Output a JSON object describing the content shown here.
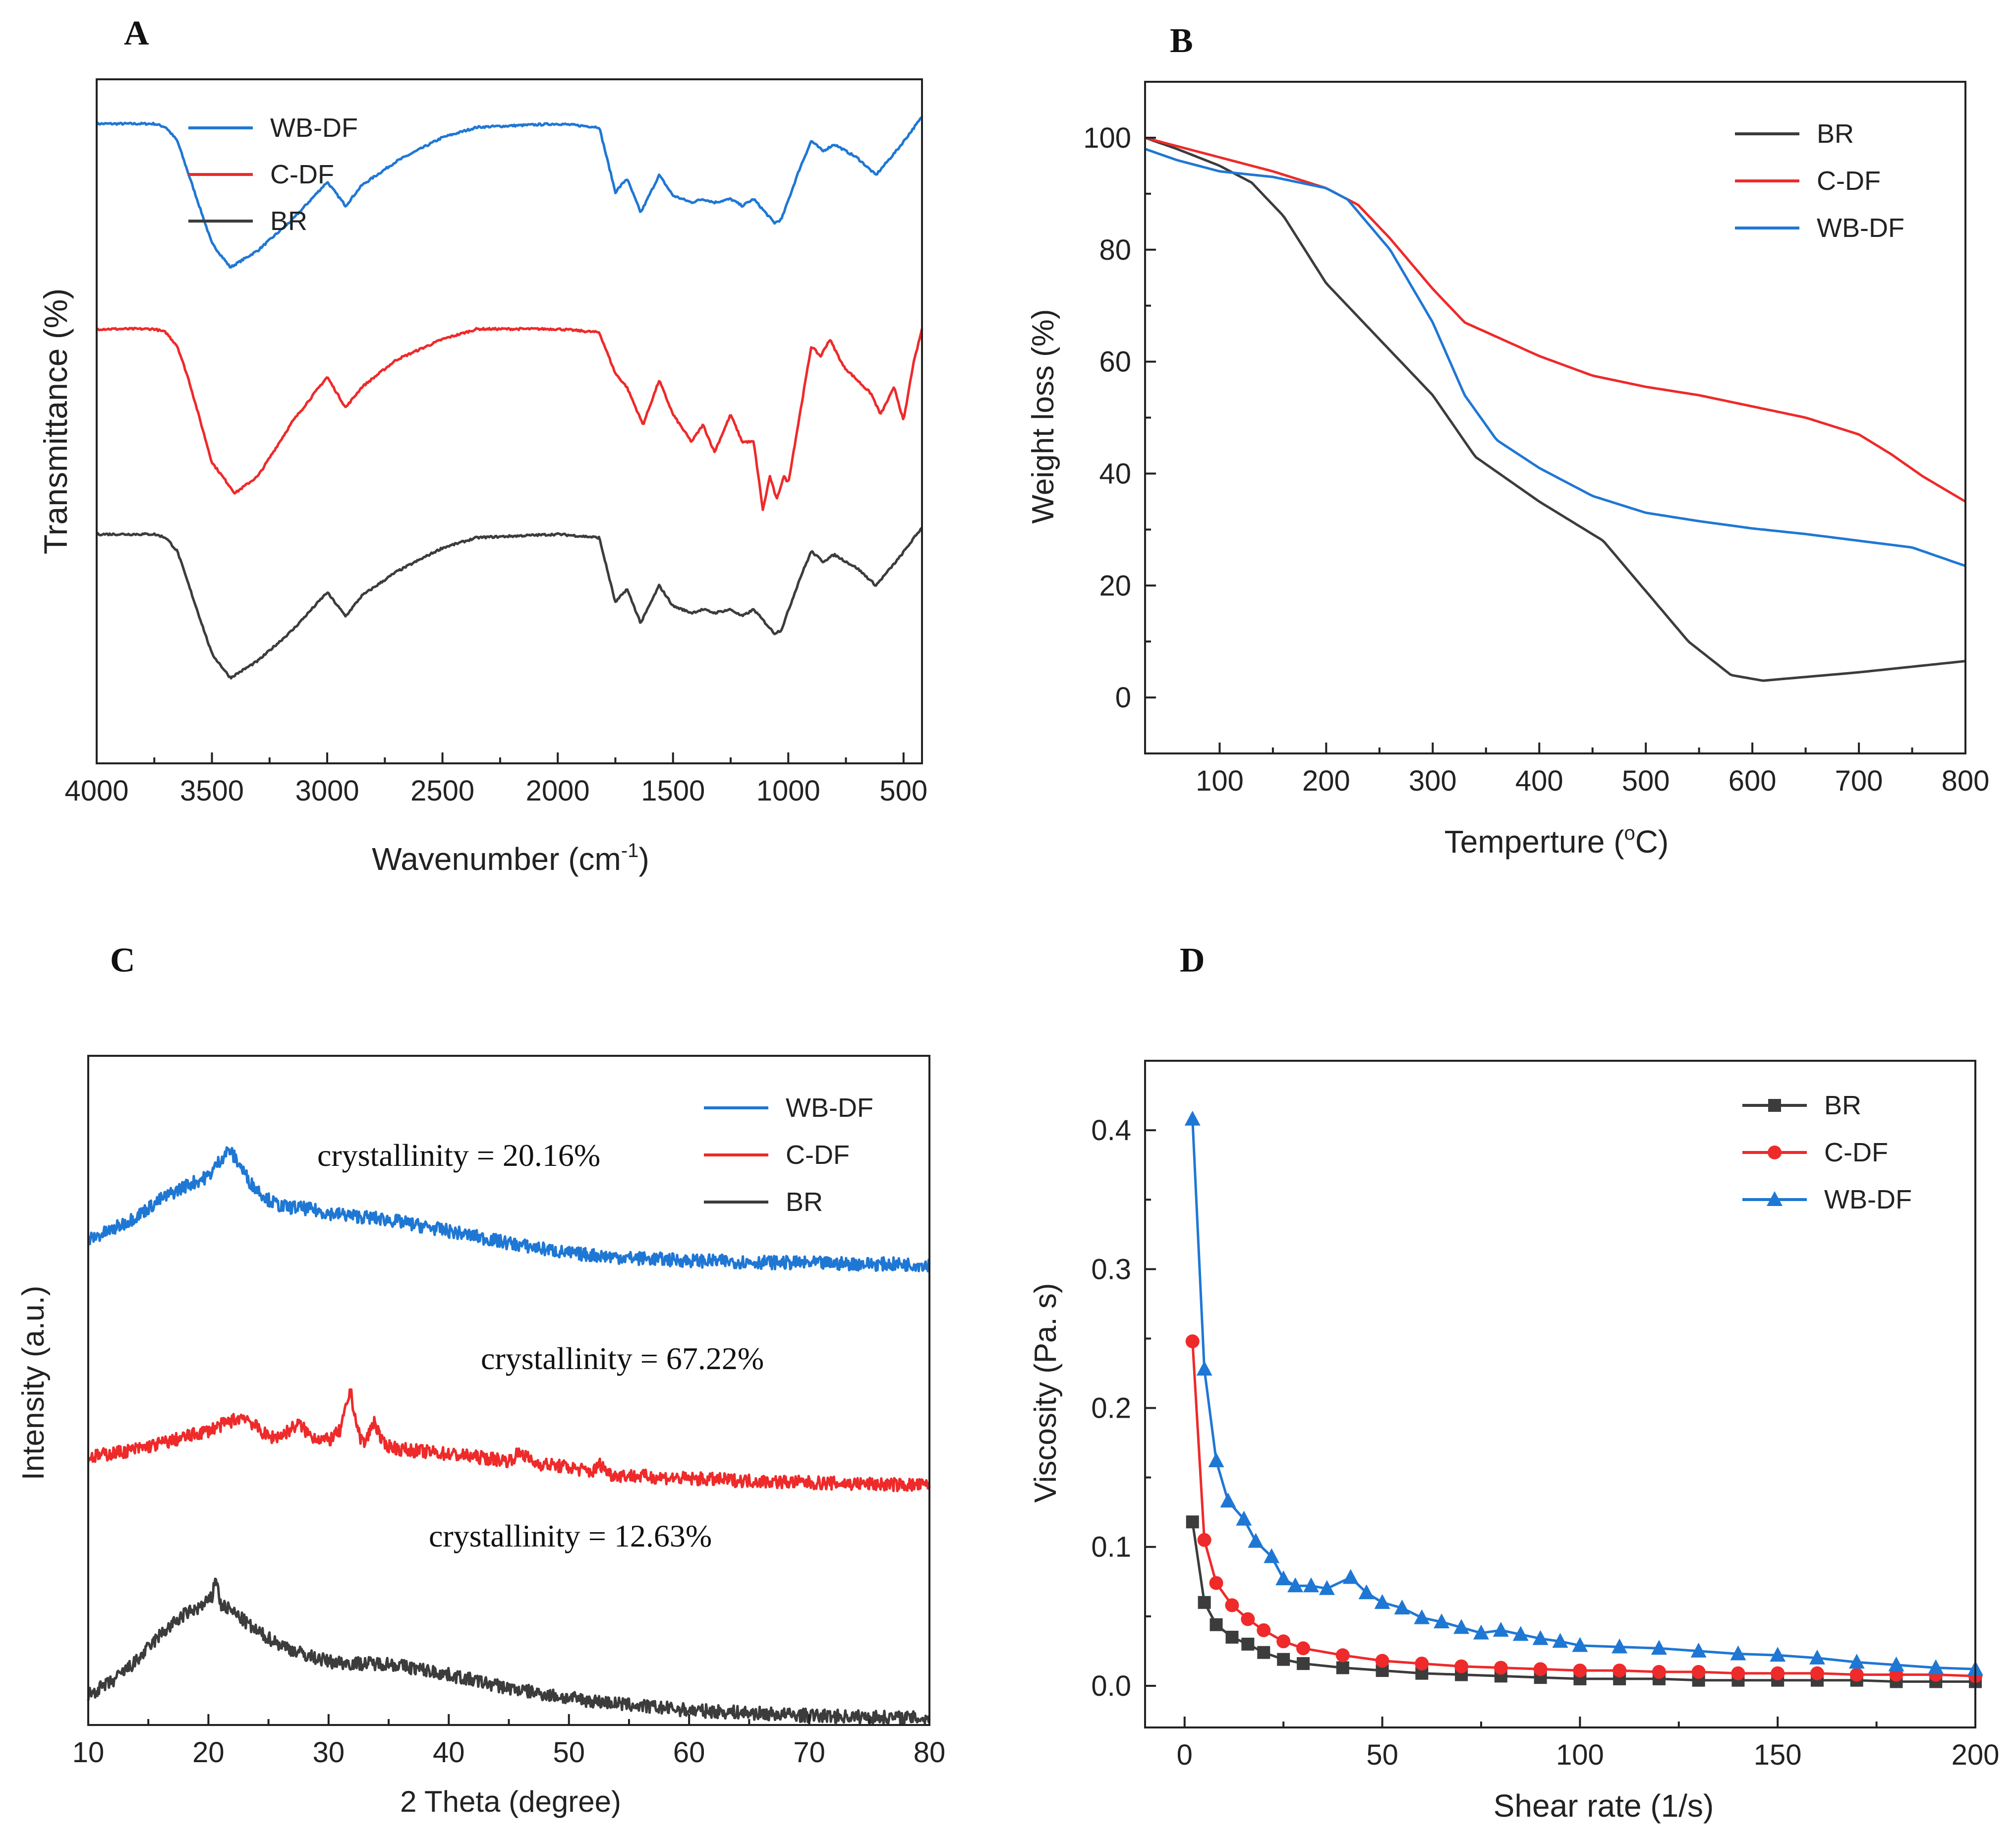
{
  "figure_panels": [
    "A",
    "B",
    "C",
    "D"
  ],
  "chart_data": [
    {
      "panel": "A",
      "type": "line",
      "title": "",
      "xlabel": "Wavenumber (cm",
      "xlabel_sup": "-1",
      "xlabel_end": ")",
      "ylabel": "Transmittance (%)",
      "xlim": [
        4000,
        420
      ],
      "ylim": [
        0,
        10
      ],
      "x_ticks": [
        4000,
        3500,
        3000,
        2500,
        2000,
        1500,
        1000,
        500
      ],
      "x_tick_labels": [
        "4000",
        "3500",
        "3000",
        "2500",
        "2000",
        "1500",
        "1000",
        "500"
      ],
      "y_ticks_shown": false,
      "legend_position": "top-left",
      "series": [
        {
          "name": "WB-DF",
          "color": "#1f77d4",
          "offset": 6.2,
          "x": [
            4000,
            3750,
            3700,
            3650,
            3600,
            3500,
            3420,
            3300,
            3150,
            3000,
            2920,
            2850,
            2700,
            2500,
            2350,
            2000,
            1820,
            1750,
            1700,
            1640,
            1560,
            1500,
            1420,
            1370,
            1320,
            1250,
            1200,
            1150,
            1060,
            1030,
            950,
            900,
            850,
            800,
            700,
            620,
            520,
            420
          ],
          "y": [
            3.15,
            3.15,
            3.1,
            2.9,
            2.4,
            1.4,
            1.05,
            1.3,
            1.75,
            2.3,
            1.95,
            2.25,
            2.6,
            2.95,
            3.1,
            3.15,
            3.1,
            2.15,
            2.35,
            1.85,
            2.4,
            2.1,
            2.0,
            2.05,
            2.0,
            2.05,
            1.95,
            2.05,
            1.7,
            1.75,
            2.5,
            2.9,
            2.75,
            2.85,
            2.65,
            2.4,
            2.8,
            3.25
          ]
        },
        {
          "name": "C-DF",
          "color": "#ee2a2a",
          "offset": 3.2,
          "x": [
            4000,
            3750,
            3700,
            3650,
            3600,
            3500,
            3400,
            3300,
            3150,
            3000,
            2920,
            2850,
            2700,
            2500,
            2350,
            2000,
            1820,
            1750,
            1700,
            1630,
            1560,
            1500,
            1420,
            1370,
            1320,
            1250,
            1200,
            1150,
            1110,
            1080,
            1050,
            1020,
            1000,
            950,
            900,
            860,
            820,
            760,
            700,
            640,
            600,
            540,
            500,
            460,
            420
          ],
          "y": [
            3.15,
            3.15,
            3.1,
            2.9,
            2.4,
            1.2,
            0.75,
            1.0,
            1.8,
            2.45,
            2.0,
            2.3,
            2.7,
            3.0,
            3.15,
            3.15,
            3.1,
            2.5,
            2.3,
            1.75,
            2.4,
            1.9,
            1.5,
            1.75,
            1.35,
            1.9,
            1.5,
            1.5,
            0.5,
            1.0,
            0.65,
            1.0,
            0.9,
            1.9,
            2.9,
            2.75,
            3.0,
            2.6,
            2.4,
            2.2,
            1.9,
            2.3,
            1.8,
            2.6,
            3.15
          ]
        },
        {
          "name": "BR",
          "color": "#3c3c3c",
          "offset": 0.2,
          "x": [
            4000,
            3750,
            3700,
            3650,
            3600,
            3500,
            3420,
            3300,
            3150,
            3000,
            2920,
            2850,
            2700,
            2500,
            2350,
            2000,
            1820,
            1750,
            1700,
            1640,
            1560,
            1500,
            1420,
            1370,
            1320,
            1250,
            1200,
            1150,
            1060,
            1030,
            950,
            900,
            850,
            800,
            700,
            620,
            520,
            420
          ],
          "y": [
            3.15,
            3.15,
            3.1,
            2.9,
            2.4,
            1.4,
            1.05,
            1.3,
            1.75,
            2.3,
            1.95,
            2.25,
            2.6,
            2.95,
            3.1,
            3.15,
            3.1,
            2.15,
            2.35,
            1.85,
            2.4,
            2.1,
            2.0,
            2.05,
            2.0,
            2.05,
            1.95,
            2.05,
            1.7,
            1.75,
            2.5,
            2.9,
            2.75,
            2.85,
            2.65,
            2.4,
            2.8,
            3.25
          ]
        }
      ]
    },
    {
      "panel": "B",
      "type": "line",
      "title": "",
      "xlabel": "Temperture (",
      "xlabel_sup": "o",
      "xlabel_end": "C)",
      "ylabel": "Weight loss (%)",
      "xlim": [
        30,
        800
      ],
      "ylim": [
        -10,
        110
      ],
      "x_ticks": [
        100,
        200,
        300,
        400,
        500,
        600,
        700,
        800
      ],
      "x_tick_labels": [
        "100",
        "200",
        "300",
        "400",
        "500",
        "600",
        "700",
        "800"
      ],
      "y_ticks": [
        0,
        20,
        40,
        60,
        80,
        100
      ],
      "y_tick_labels": [
        "0",
        "20",
        "40",
        "60",
        "80",
        "100"
      ],
      "legend_position": "top-right",
      "series": [
        {
          "name": "BR",
          "color": "#3c3c3c",
          "x": [
            30,
            60,
            100,
            130,
            160,
            200,
            250,
            300,
            340,
            400,
            460,
            500,
            540,
            580,
            610,
            700,
            800
          ],
          "y": [
            100,
            98,
            95,
            92,
            86,
            74,
            64,
            54,
            43,
            35,
            28,
            19,
            10,
            4,
            3,
            4.5,
            6.5
          ]
        },
        {
          "name": "C-DF",
          "color": "#ee2a2a",
          "x": [
            30,
            60,
            100,
            150,
            200,
            230,
            260,
            300,
            330,
            400,
            450,
            500,
            550,
            600,
            650,
            700,
            730,
            760,
            800
          ],
          "y": [
            100,
            98.5,
            96.5,
            94,
            91,
            88,
            82,
            73,
            67,
            61,
            57.5,
            55.5,
            54,
            52,
            50,
            47,
            43.5,
            39.5,
            35
          ]
        },
        {
          "name": "WB-DF",
          "color": "#1f77d4",
          "x": [
            30,
            60,
            100,
            150,
            200,
            220,
            260,
            300,
            330,
            360,
            400,
            450,
            500,
            550,
            600,
            650,
            700,
            750,
            800
          ],
          "y": [
            98,
            96,
            94,
            93,
            91,
            89,
            80,
            67,
            54,
            46,
            41,
            36,
            33,
            31.5,
            30.2,
            29.2,
            28,
            26.8,
            23.5
          ]
        }
      ]
    },
    {
      "panel": "C",
      "type": "line",
      "title": "",
      "xlabel": "2 Theta (degree)",
      "ylabel": "Intensity (a.u.)",
      "xlim": [
        10,
        80
      ],
      "ylim": [
        0,
        10
      ],
      "x_ticks": [
        10,
        20,
        30,
        40,
        50,
        60,
        70,
        80
      ],
      "x_tick_labels": [
        "10",
        "20",
        "30",
        "40",
        "50",
        "60",
        "70",
        "80"
      ],
      "y_ticks_shown": false,
      "legend_position": "top-right",
      "annotations": [
        "crystallinity = 20.16%",
        "crystallinity = 67.22%",
        "crystallinity = 12.63%"
      ],
      "series": [
        {
          "name": "WB-DF",
          "color": "#1f77d4",
          "x": [
            10,
            12,
            14,
            16,
            18,
            20,
            21,
            21.7,
            22.5,
            23.5,
            25,
            26,
            28,
            30,
            35,
            40,
            45,
            50,
            55,
            60,
            65,
            70,
            75,
            80
          ],
          "y": [
            7.25,
            7.4,
            7.6,
            7.85,
            8.05,
            8.2,
            8.45,
            8.6,
            8.4,
            8.1,
            7.85,
            7.75,
            7.72,
            7.65,
            7.55,
            7.38,
            7.2,
            7.05,
            6.98,
            6.94,
            6.92,
            6.9,
            6.89,
            6.88
          ]
        },
        {
          "name": "C-DF",
          "color": "#ee2a2a",
          "x": [
            10,
            14,
            17,
            20,
            22,
            23,
            24,
            25,
            26,
            27.5,
            28.5,
            30,
            31,
            31.8,
            32.5,
            33,
            33.8,
            34.5,
            36,
            40,
            45,
            46,
            47,
            50,
            52,
            52.6,
            53.5,
            60,
            70,
            80
          ],
          "y": [
            4.0,
            4.12,
            4.25,
            4.4,
            4.55,
            4.62,
            4.45,
            4.3,
            4.32,
            4.5,
            4.32,
            4.25,
            4.4,
            5.0,
            4.35,
            4.2,
            4.55,
            4.2,
            4.12,
            4.05,
            3.95,
            4.08,
            3.92,
            3.85,
            3.78,
            3.9,
            3.74,
            3.68,
            3.62,
            3.58
          ]
        },
        {
          "name": "BR",
          "color": "#3c3c3c",
          "x": [
            10,
            12,
            14,
            16,
            18,
            19.5,
            20.3,
            20.6,
            21,
            22,
            24,
            26,
            28,
            30,
            32,
            35,
            38,
            40,
            45,
            50,
            55,
            60,
            65,
            70,
            75,
            80
          ],
          "y": [
            0.45,
            0.65,
            0.95,
            1.35,
            1.65,
            1.78,
            1.9,
            2.25,
            1.8,
            1.7,
            1.4,
            1.2,
            1.05,
            0.95,
            0.92,
            0.92,
            0.82,
            0.75,
            0.55,
            0.4,
            0.3,
            0.22,
            0.18,
            0.14,
            0.12,
            0.1
          ]
        }
      ]
    },
    {
      "panel": "D",
      "type": "scatter",
      "title": "",
      "xlabel": "Shear rate (1/s)",
      "ylabel": "Viscosity (Pa. s)",
      "xlim": [
        -10,
        200
      ],
      "ylim": [
        -0.03,
        0.45
      ],
      "x_ticks": [
        0,
        50,
        100,
        150,
        200
      ],
      "x_tick_labels": [
        "0",
        "50",
        "100",
        "150",
        "200"
      ],
      "y_ticks": [
        0.0,
        0.1,
        0.2,
        0.3,
        0.4
      ],
      "y_tick_labels": [
        "0.0",
        "0.1",
        "0.2",
        "0.3",
        "0.4"
      ],
      "legend_position": "top-right",
      "series": [
        {
          "name": "BR",
          "color": "#3c3c3c",
          "marker": "square",
          "x": [
            2,
            5,
            8,
            12,
            16,
            20,
            25,
            30,
            40,
            50,
            60,
            70,
            80,
            90,
            100,
            110,
            120,
            130,
            140,
            150,
            160,
            170,
            180,
            190,
            200
          ],
          "y": [
            0.118,
            0.06,
            0.044,
            0.035,
            0.03,
            0.024,
            0.019,
            0.016,
            0.013,
            0.011,
            0.009,
            0.008,
            0.007,
            0.006,
            0.005,
            0.005,
            0.005,
            0.004,
            0.004,
            0.004,
            0.004,
            0.004,
            0.003,
            0.003,
            0.003
          ]
        },
        {
          "name": "C-DF",
          "color": "#ee2a2a",
          "marker": "circle",
          "x": [
            2,
            5,
            8,
            12,
            16,
            20,
            25,
            30,
            40,
            50,
            60,
            70,
            80,
            90,
            100,
            110,
            120,
            130,
            140,
            150,
            160,
            170,
            180,
            190,
            200
          ],
          "y": [
            0.248,
            0.105,
            0.074,
            0.058,
            0.048,
            0.04,
            0.032,
            0.027,
            0.022,
            0.018,
            0.016,
            0.014,
            0.013,
            0.012,
            0.011,
            0.011,
            0.01,
            0.01,
            0.009,
            0.009,
            0.009,
            0.008,
            0.008,
            0.008,
            0.007
          ]
        },
        {
          "name": "WB-DF",
          "color": "#1f77d4",
          "marker": "triangle",
          "x": [
            2,
            5,
            8,
            11,
            15,
            18,
            22,
            25,
            28,
            32,
            36,
            42,
            46,
            50,
            55,
            60,
            65,
            70,
            75,
            80,
            85,
            90,
            95,
            100,
            110,
            120,
            130,
            140,
            150,
            160,
            170,
            180,
            190,
            200
          ],
          "y": [
            0.408,
            0.228,
            0.162,
            0.133,
            0.12,
            0.104,
            0.093,
            0.077,
            0.072,
            0.072,
            0.07,
            0.078,
            0.067,
            0.06,
            0.056,
            0.049,
            0.046,
            0.042,
            0.038,
            0.04,
            0.037,
            0.034,
            0.032,
            0.029,
            0.028,
            0.027,
            0.025,
            0.023,
            0.022,
            0.02,
            0.017,
            0.015,
            0.013,
            0.012
          ]
        }
      ]
    }
  ]
}
